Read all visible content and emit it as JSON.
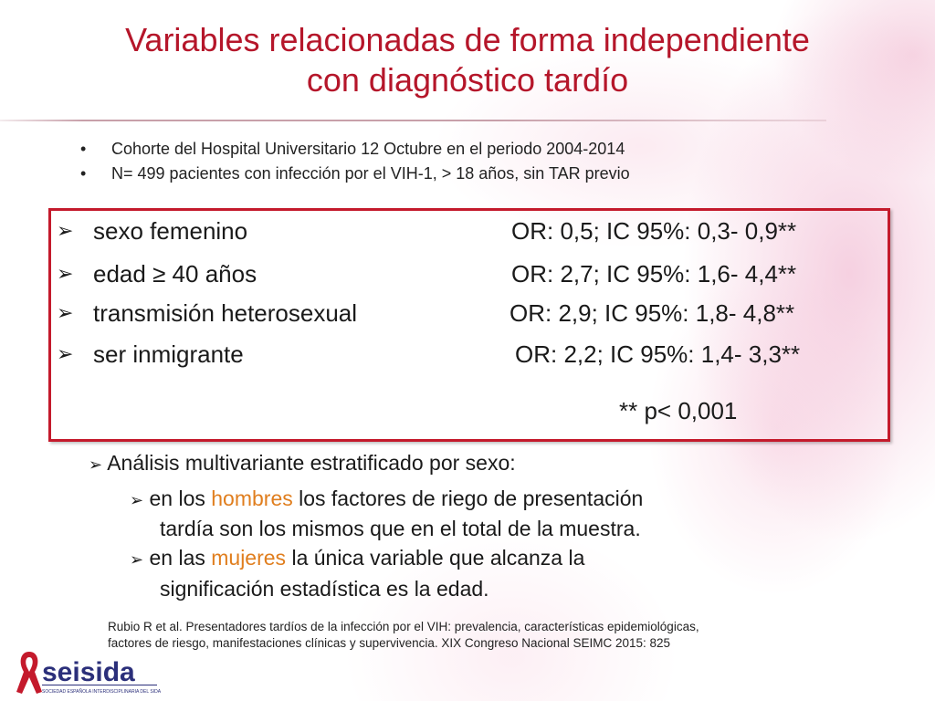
{
  "title": {
    "line1": "Variables relacionadas de forma independiente",
    "line2": "con diagnóstico tardío"
  },
  "intro_bullets": [
    "Cohorte del Hospital Universitario 12 Octubre en el periodo 2004-2014",
    "N= 499 pacientes con infección por el VIH-1, > 18 años, sin TAR previo"
  ],
  "risk_factors": [
    {
      "variable": "sexo femenino",
      "result": "OR: 0,5; IC 95%: 0,3- 0,9**"
    },
    {
      "variable": "edad ≥ 40 años",
      "result": "OR: 2,7; IC 95%: 1,6- 4,4**"
    },
    {
      "variable": "transmisión heterosexual",
      "result": "OR: 2,9; IC 95%: 1,8- 4,8**"
    },
    {
      "variable": "ser inmigrante",
      "result": "OR: 2,2; IC 95%: 1,4- 3,3**"
    }
  ],
  "significance_note": "** p< 0,001",
  "analysis": {
    "heading": "Análisis multivariante estratificado por sexo:",
    "men": {
      "pre": "en los ",
      "highlight": "hombres",
      "post": "  los factores de riego de presentación",
      "cont": "tardía son los mismos que en el total de la muestra."
    },
    "women": {
      "pre": "en las ",
      "highlight": "mujeres",
      "post": " la única variable que alcanza la",
      "cont": "significación estadística es la edad."
    }
  },
  "reference": {
    "line1": "Rubio R et al. Presentadores tardíos de la infección por el VIH: prevalencia, características epidemiológicas,",
    "line2": "factores de riesgo, manifestaciones clínicas y supervivencia. XIX Congreso Nacional SEIMC 2015: 825"
  },
  "logo": {
    "name": "seisida",
    "tagline": "SOCIEDAD ESPAÑOLA INTERDISCIPLINARIA DEL SIDA"
  },
  "colors": {
    "title": "#b5162a",
    "box_border": "#c41a2c",
    "highlight": "#e07e1e"
  }
}
